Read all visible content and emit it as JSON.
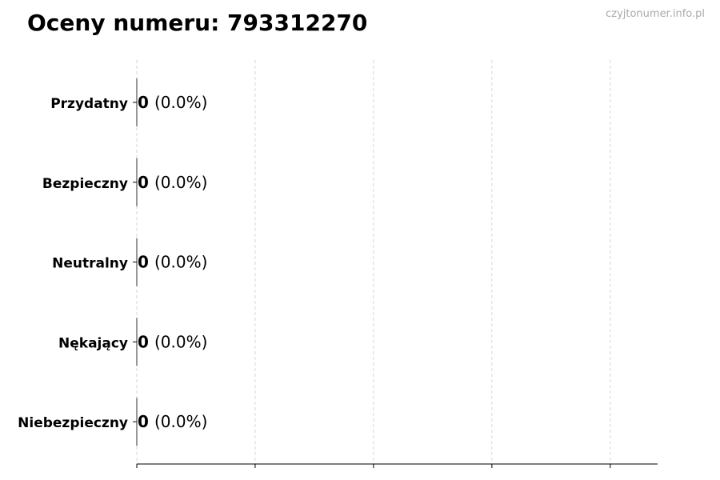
{
  "header": {
    "title": "Oceny numeru: 793312270",
    "watermark": "czyjtonumer.info.pl"
  },
  "chart_data": {
    "type": "bar",
    "orientation": "horizontal",
    "title": "Oceny numeru: 793312270",
    "categories": [
      "Przydatny",
      "Bezpieczny",
      "Neutralny",
      "Nękający",
      "Niebezpieczny"
    ],
    "values": [
      0,
      0,
      0,
      0,
      0
    ],
    "data_labels": [
      {
        "count": "0",
        "percent": "(0.0%)"
      },
      {
        "count": "0",
        "percent": "(0.0%)"
      },
      {
        "count": "0",
        "percent": "(0.0%)"
      },
      {
        "count": "0",
        "percent": "(0.0%)"
      },
      {
        "count": "0",
        "percent": "(0.0%)"
      }
    ],
    "xlabel": "",
    "ylabel": "",
    "xlim": [
      0,
      4.4
    ],
    "xticks": [
      0,
      1,
      2,
      3,
      4
    ],
    "xtick_labels_shown": false,
    "grid": "x dashed",
    "bar_edge_color": "#333333",
    "grid_color": "#cccccc"
  }
}
